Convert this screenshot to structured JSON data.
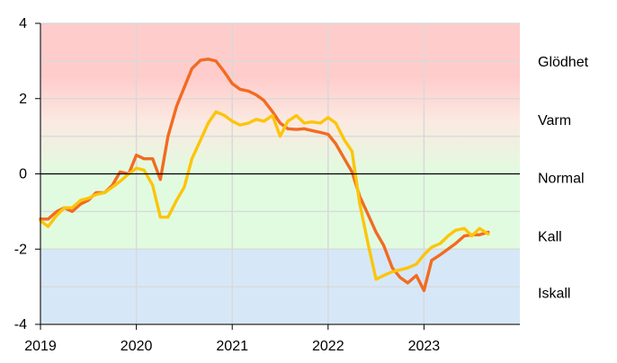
{
  "chart_data": {
    "type": "line",
    "title": "",
    "xlabel": "",
    "ylabel": "",
    "xlim": [
      2019.0,
      2024.0
    ],
    "ylim": [
      -4,
      4
    ],
    "x_ticks": [
      2019,
      2020,
      2021,
      2022,
      2023
    ],
    "x_tick_labels": [
      "2019",
      "2020",
      "2021",
      "2022",
      "2023"
    ],
    "y_ticks": [
      4,
      2,
      0,
      -2,
      -4
    ],
    "y_tick_labels": [
      "4",
      "2",
      "0",
      "-2",
      "-4"
    ],
    "grid": true,
    "zones": [
      {
        "label": "Glödhet",
        "y": 3.0
      },
      {
        "label": "Varm",
        "y": 1.45
      },
      {
        "label": "Normal",
        "y": -0.1
      },
      {
        "label": "Kall",
        "y": -1.65
      },
      {
        "label": "Iskall",
        "y": -3.15
      }
    ],
    "colors": {
      "zone_hot": "#ffcccc",
      "zone_warm": "#fbe9e1",
      "zone_normal": "#e1fbe0",
      "zone_cold": "#d6e8f8",
      "series_orange": "#f26b21",
      "series_yellow": "#fcc50b",
      "grid": "#d9d9d9",
      "zero_line": "#000000"
    },
    "series": [
      {
        "color": "#f26b21",
        "x": [
          2019.0,
          2019.08,
          2019.17,
          2019.25,
          2019.33,
          2019.42,
          2019.5,
          2019.58,
          2019.67,
          2019.75,
          2019.83,
          2019.92,
          2020.0,
          2020.08,
          2020.17,
          2020.25,
          2020.33,
          2020.42,
          2020.5,
          2020.58,
          2020.67,
          2020.75,
          2020.83,
          2020.92,
          2021.0,
          2021.08,
          2021.17,
          2021.25,
          2021.33,
          2021.42,
          2021.5,
          2021.58,
          2021.67,
          2021.75,
          2021.83,
          2021.92,
          2022.0,
          2022.08,
          2022.17,
          2022.25,
          2022.33,
          2022.42,
          2022.5,
          2022.58,
          2022.67,
          2022.75,
          2022.83,
          2022.92,
          2023.0,
          2023.08,
          2023.17,
          2023.25,
          2023.33,
          2023.42,
          2023.5,
          2023.58,
          2023.67
        ],
        "y": [
          -1.2,
          -1.2,
          -1.0,
          -0.9,
          -1.0,
          -0.8,
          -0.7,
          -0.5,
          -0.5,
          -0.3,
          0.05,
          0.0,
          0.5,
          0.4,
          0.4,
          -0.15,
          1.0,
          1.8,
          2.3,
          2.8,
          3.02,
          3.05,
          3.0,
          2.7,
          2.4,
          2.25,
          2.2,
          2.1,
          1.95,
          1.65,
          1.35,
          1.2,
          1.18,
          1.2,
          1.15,
          1.1,
          1.05,
          0.8,
          0.4,
          0.05,
          -0.6,
          -1.1,
          -1.55,
          -1.9,
          -2.5,
          -2.75,
          -2.9,
          -2.7,
          -3.1,
          -2.3,
          -2.15,
          -2.0,
          -1.85,
          -1.65,
          -1.62,
          -1.62,
          -1.55
        ]
      },
      {
        "color": "#fcc50b",
        "x": [
          2019.0,
          2019.08,
          2019.17,
          2019.25,
          2019.33,
          2019.42,
          2019.5,
          2019.58,
          2019.67,
          2019.75,
          2019.83,
          2019.92,
          2020.0,
          2020.08,
          2020.17,
          2020.25,
          2020.33,
          2020.42,
          2020.5,
          2020.58,
          2020.67,
          2020.75,
          2020.83,
          2020.92,
          2021.0,
          2021.08,
          2021.17,
          2021.25,
          2021.33,
          2021.42,
          2021.5,
          2021.58,
          2021.67,
          2021.75,
          2021.83,
          2021.92,
          2022.0,
          2022.08,
          2022.17,
          2022.25,
          2022.33,
          2022.42,
          2022.5,
          2022.58,
          2022.67,
          2022.75,
          2022.83,
          2022.92,
          2023.0,
          2023.08,
          2023.17,
          2023.25,
          2023.33,
          2023.42,
          2023.5,
          2023.58,
          2023.67
        ],
        "y": [
          -1.25,
          -1.4,
          -1.1,
          -0.9,
          -0.9,
          -0.7,
          -0.65,
          -0.55,
          -0.5,
          -0.35,
          -0.2,
          0.0,
          0.15,
          0.1,
          -0.3,
          -1.15,
          -1.15,
          -0.7,
          -0.35,
          0.4,
          0.9,
          1.35,
          1.65,
          1.55,
          1.4,
          1.3,
          1.35,
          1.45,
          1.4,
          1.55,
          1.0,
          1.4,
          1.55,
          1.35,
          1.38,
          1.35,
          1.5,
          1.35,
          0.9,
          0.6,
          -0.8,
          -1.9,
          -2.8,
          -2.7,
          -2.6,
          -2.55,
          -2.5,
          -2.4,
          -2.15,
          -1.95,
          -1.85,
          -1.65,
          -1.5,
          -1.45,
          -1.65,
          -1.45,
          -1.6
        ]
      }
    ]
  }
}
